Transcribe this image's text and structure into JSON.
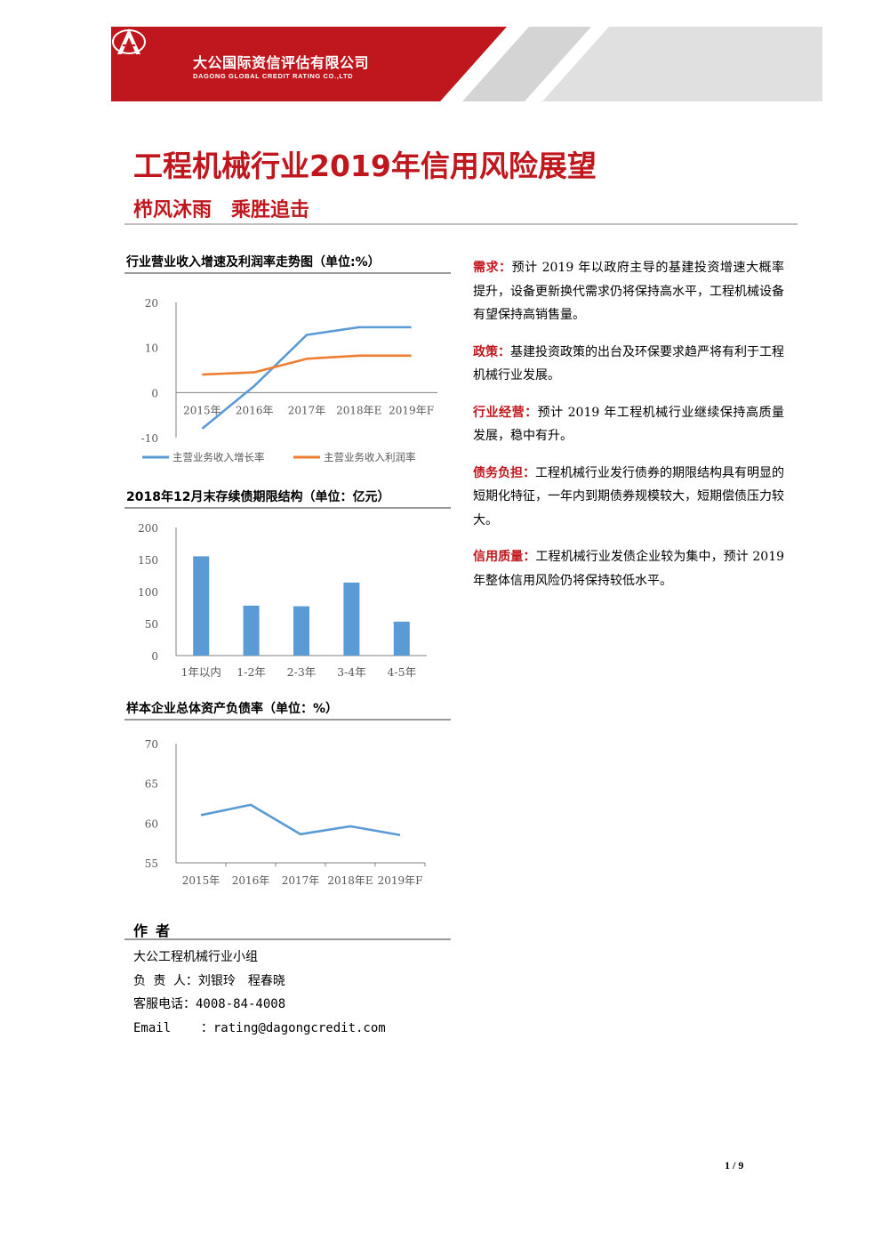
{
  "header": {
    "company_cn": "大公国际资信评估有限公司",
    "company_en": "DAGONG GLOBAL CREDIT RATING CO.,LTD",
    "brand_color": "#c0161d"
  },
  "title": "工程机械行业2019年信用风险展望",
  "subtitle": "栉风沐雨　乘胜追击",
  "charts": {
    "chart1_title": "行业营业收入增速及利润率走势图（单位:%）",
    "chart2_title": "2018年12月末存续债期限结构（单位：亿元）",
    "chart3_title": "样本企业总体资产负债率（单位：%）"
  },
  "chart_data": [
    {
      "type": "line",
      "title": "行业营业收入增速及利润率走势图（单位:%）",
      "categories": [
        "2015年",
        "2016年",
        "2017年",
        "2018年E",
        "2019年F"
      ],
      "ylim": [
        -10,
        20
      ],
      "yticks": [
        "20",
        "10",
        "0",
        "-10"
      ],
      "legend": "bottom",
      "series": [
        {
          "name": "主营业务收入增长率",
          "color": "#5b9bd5",
          "values": [
            -8,
            1.5,
            12.8,
            14.5,
            14.5
          ]
        },
        {
          "name": "主营业务收入利润率",
          "color": "#ed7d31",
          "values": [
            4,
            4.5,
            7.5,
            8.2,
            8.2
          ]
        }
      ]
    },
    {
      "type": "bar",
      "title": "2018年12月末存续债期限结构（单位：亿元）",
      "categories": [
        "1年以内",
        "1-2年",
        "2-3年",
        "3-4年",
        "4-5年"
      ],
      "ylim": [
        0,
        200
      ],
      "yticks": [
        "200",
        "150",
        "100",
        "50",
        "0"
      ],
      "color": "#5b9bd5",
      "values": [
        155,
        78,
        77,
        114,
        53
      ]
    },
    {
      "type": "line",
      "title": "样本企业总体资产负债率（单位：%）",
      "categories": [
        "2015年",
        "2016年",
        "2017年",
        "2018年E",
        "2019年F"
      ],
      "ylim": [
        55,
        70
      ],
      "yticks": [
        "70",
        "65",
        "60",
        "55"
      ],
      "series": [
        {
          "color": "#5b9bd5",
          "values": [
            61,
            62.3,
            58.6,
            59.6,
            58.5
          ]
        }
      ]
    }
  ],
  "right": {
    "p1_kw": "需求：",
    "p1_text": "预计 2019 年以政府主导的基建投资增速大概率提升，设备更新换代需求仍将保持高水平，工程机械设备有望保持高销售量。",
    "p2_kw": "政策：",
    "p2_text": "基建投资政策的出台及环保要求趋严将有利于工程机械行业发展。",
    "p3_kw": "行业经营：",
    "p3_text": "预计 2019 年工程机械行业继续保持高质量发展，稳中有升。",
    "p4_kw": "债务负担：",
    "p4_text": "工程机械行业发行债券的期限结构具有明显的短期化特征，一年内到期债券规模较大，短期偿债压力较大。",
    "p5_kw": "信用质量：",
    "p5_text": "工程机械行业发债企业较为集中，预计 2019 年整体信用风险仍将保持较低水平。"
  },
  "author": {
    "heading": "作者",
    "team": "大公工程机械行业小组",
    "responsible": "负 责 人：刘银玲　程春晓",
    "phone": "客服电话：4008-84-4008",
    "email": "Email    ：rating@dagongcredit.com"
  },
  "page": "1 / 9"
}
